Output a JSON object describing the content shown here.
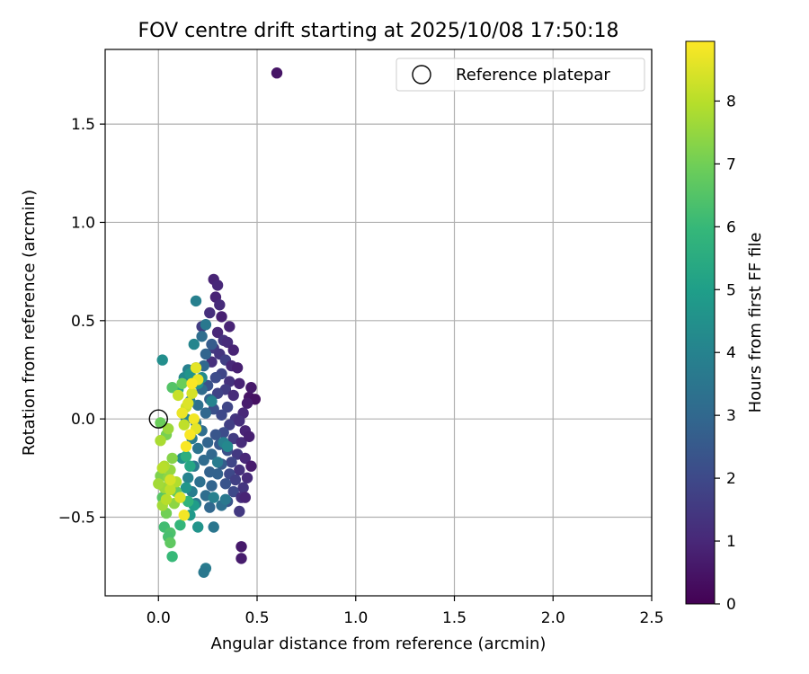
{
  "chart_data": {
    "type": "scatter",
    "title": "FOV centre drift starting at 2025/10/08 17:50:18",
    "xlabel": "Angular distance from reference (arcmin)",
    "ylabel": "Rotation from reference (arcmin)",
    "xlim": [
      -0.27,
      2.5
    ],
    "ylim": [
      -0.9,
      1.88
    ],
    "xticks": [
      0.0,
      0.5,
      1.0,
      1.5,
      2.0,
      2.5
    ],
    "xtick_labels": [
      "0.0",
      "0.5",
      "1.0",
      "1.5",
      "2.0",
      "2.5"
    ],
    "yticks": [
      -0.5,
      0.0,
      0.5,
      1.0,
      1.5
    ],
    "ytick_labels": [
      "−0.5",
      "0.0",
      "0.5",
      "1.0",
      "1.5"
    ],
    "grid": true,
    "legend": {
      "placement": "top-right",
      "entries": [
        "Reference platepar"
      ]
    },
    "reference_point": {
      "x": 0.0,
      "y": 0.0,
      "label": "Reference platepar"
    },
    "colorbar": {
      "label": "Hours from first FF file",
      "colormap": "viridis",
      "range": [
        0,
        8.95
      ],
      "ticks": [
        0,
        1,
        2,
        3,
        4,
        5,
        6,
        7,
        8
      ],
      "tick_labels": [
        "0",
        "1",
        "2",
        "3",
        "4",
        "5",
        "6",
        "7",
        "8"
      ]
    },
    "colormap_stops": [
      "#440154",
      "#482878",
      "#3e4989",
      "#31688e",
      "#26828e",
      "#1f9e89",
      "#35b779",
      "#6ece58",
      "#b5de2b",
      "#fde725"
    ],
    "series": [
      {
        "points": [
          [
            0.6,
            1.76,
            0.5
          ],
          [
            0.28,
            0.71,
            0.9
          ],
          [
            0.3,
            0.68,
            1.0
          ],
          [
            0.29,
            0.62,
            0.9
          ],
          [
            0.31,
            0.58,
            1.1
          ],
          [
            0.26,
            0.54,
            1.2
          ],
          [
            0.32,
            0.52,
            0.8
          ],
          [
            0.22,
            0.47,
            1.6
          ],
          [
            0.36,
            0.47,
            0.9
          ],
          [
            0.3,
            0.44,
            1.0
          ],
          [
            0.33,
            0.4,
            1.3
          ],
          [
            0.35,
            0.39,
            1.1
          ],
          [
            0.28,
            0.36,
            1.5
          ],
          [
            0.38,
            0.35,
            0.9
          ],
          [
            0.31,
            0.33,
            1.4
          ],
          [
            0.34,
            0.3,
            1.7
          ],
          [
            0.27,
            0.29,
            1.2
          ],
          [
            0.37,
            0.27,
            1.0
          ],
          [
            0.4,
            0.26,
            0.8
          ],
          [
            0.32,
            0.23,
            1.9
          ],
          [
            0.29,
            0.21,
            2.1
          ],
          [
            0.36,
            0.19,
            1.3
          ],
          [
            0.41,
            0.18,
            0.9
          ],
          [
            0.25,
            0.17,
            2.3
          ],
          [
            0.34,
            0.15,
            1.6
          ],
          [
            0.3,
            0.13,
            1.8
          ],
          [
            0.38,
            0.12,
            1.1
          ],
          [
            0.46,
            0.11,
            0.5
          ],
          [
            0.47,
            0.16,
            0.6
          ],
          [
            0.49,
            0.1,
            0.4
          ],
          [
            0.45,
            0.08,
            0.7
          ],
          [
            0.43,
            0.03,
            1.0
          ],
          [
            0.35,
            0.06,
            1.9
          ],
          [
            0.28,
            0.05,
            2.2
          ],
          [
            0.32,
            0.02,
            2.0
          ],
          [
            0.39,
            0.0,
            1.4
          ],
          [
            0.36,
            -0.03,
            1.7
          ],
          [
            0.41,
            -0.01,
            1.2
          ],
          [
            0.44,
            -0.06,
            0.9
          ],
          [
            0.33,
            -0.07,
            2.1
          ],
          [
            0.29,
            -0.08,
            2.4
          ],
          [
            0.38,
            -0.1,
            1.6
          ],
          [
            0.42,
            -0.12,
            1.1
          ],
          [
            0.46,
            -0.09,
            0.8
          ],
          [
            0.31,
            -0.13,
            2.5
          ],
          [
            0.35,
            -0.16,
            2.2
          ],
          [
            0.4,
            -0.18,
            1.5
          ],
          [
            0.27,
            -0.18,
            3.0
          ],
          [
            0.44,
            -0.2,
            1.0
          ],
          [
            0.37,
            -0.22,
            1.9
          ],
          [
            0.32,
            -0.23,
            2.6
          ],
          [
            0.47,
            -0.24,
            0.7
          ],
          [
            0.41,
            -0.26,
            1.3
          ],
          [
            0.36,
            -0.28,
            2.0
          ],
          [
            0.3,
            -0.28,
            2.8
          ],
          [
            0.45,
            -0.3,
            1.1
          ],
          [
            0.39,
            -0.31,
            1.7
          ],
          [
            0.34,
            -0.33,
            2.3
          ],
          [
            0.43,
            -0.35,
            1.4
          ],
          [
            0.38,
            -0.37,
            2.0
          ],
          [
            0.42,
            -0.4,
            1.2
          ],
          [
            0.35,
            -0.42,
            2.4
          ],
          [
            0.44,
            -0.4,
            0.9
          ],
          [
            0.41,
            -0.47,
            1.5
          ],
          [
            0.42,
            -0.65,
            0.6
          ],
          [
            0.42,
            -0.71,
            0.7
          ],
          [
            0.24,
            0.48,
            3.6
          ],
          [
            0.22,
            0.42,
            3.2
          ],
          [
            0.27,
            0.38,
            2.6
          ],
          [
            0.24,
            0.33,
            2.9
          ],
          [
            0.19,
            0.26,
            3.4
          ],
          [
            0.23,
            0.27,
            3.0
          ],
          [
            0.15,
            0.25,
            3.9
          ],
          [
            0.13,
            0.21,
            4.2
          ],
          [
            0.18,
            0.2,
            3.5
          ],
          [
            0.22,
            0.15,
            3.1
          ],
          [
            0.26,
            0.1,
            2.8
          ],
          [
            0.2,
            0.07,
            3.3
          ],
          [
            0.16,
            0.09,
            3.8
          ],
          [
            0.24,
            0.03,
            3.0
          ],
          [
            0.19,
            -0.02,
            3.5
          ],
          [
            0.14,
            0.0,
            4.1
          ],
          [
            0.22,
            -0.06,
            3.2
          ],
          [
            0.17,
            -0.1,
            3.7
          ],
          [
            0.25,
            -0.12,
            2.9
          ],
          [
            0.2,
            -0.15,
            3.4
          ],
          [
            0.12,
            -0.2,
            4.5
          ],
          [
            0.23,
            -0.21,
            3.1
          ],
          [
            0.18,
            -0.24,
            3.6
          ],
          [
            0.26,
            -0.27,
            2.8
          ],
          [
            0.15,
            -0.3,
            4.0
          ],
          [
            0.21,
            -0.32,
            3.3
          ],
          [
            0.27,
            -0.34,
            2.9
          ],
          [
            0.17,
            -0.37,
            3.8
          ],
          [
            0.24,
            -0.39,
            3.2
          ],
          [
            0.19,
            -0.43,
            3.6
          ],
          [
            0.26,
            -0.45,
            3.0
          ],
          [
            0.32,
            -0.44,
            3.3
          ],
          [
            0.34,
            -0.41,
            3.6
          ],
          [
            0.28,
            -0.4,
            3.9
          ],
          [
            0.3,
            -0.22,
            3.7
          ],
          [
            0.33,
            -0.12,
            3.9
          ],
          [
            0.35,
            -0.14,
            4.2
          ],
          [
            0.27,
            0.09,
            4.0
          ],
          [
            0.28,
            -0.55,
            3.5
          ],
          [
            0.18,
            0.38,
            4.1
          ],
          [
            0.19,
            0.6,
            3.9
          ],
          [
            0.24,
            -0.76,
            3.7
          ],
          [
            0.23,
            -0.78,
            3.6
          ],
          [
            0.02,
            0.3,
            4.4
          ],
          [
            0.2,
            -0.55,
            4.6
          ],
          [
            0.16,
            -0.49,
            4.8
          ],
          [
            0.14,
            -0.35,
            4.7
          ],
          [
            0.18,
            -0.44,
            4.9
          ],
          [
            0.16,
            0.23,
            4.6
          ],
          [
            0.2,
            0.18,
            4.5
          ],
          [
            0.22,
            0.21,
            4.3
          ],
          [
            0.1,
            0.15,
            5.4
          ],
          [
            0.14,
            -0.19,
            5.6
          ],
          [
            0.16,
            -0.24,
            5.3
          ],
          [
            0.15,
            -0.42,
            5.8
          ],
          [
            0.11,
            -0.54,
            5.9
          ],
          [
            0.03,
            -0.55,
            6.2
          ],
          [
            0.06,
            -0.58,
            6.4
          ],
          [
            0.07,
            -0.7,
            6.0
          ],
          [
            0.05,
            -0.6,
            6.3
          ],
          [
            0.07,
            0.16,
            6.5
          ],
          [
            0.12,
            0.18,
            6.9
          ],
          [
            0.09,
            -0.37,
            6.8
          ],
          [
            0.02,
            -0.4,
            6.6
          ],
          [
            0.06,
            -0.63,
            6.7
          ],
          [
            0.04,
            -0.48,
            7.0
          ],
          [
            0.01,
            -0.29,
            7.2
          ],
          [
            0.01,
            -0.02,
            6.9
          ],
          [
            0.04,
            -0.08,
            7.1
          ],
          [
            0.07,
            -0.2,
            7.3
          ],
          [
            0.05,
            -0.3,
            7.4
          ],
          [
            0.03,
            -0.35,
            7.6
          ],
          [
            0.06,
            -0.26,
            7.5
          ],
          [
            0.02,
            -0.44,
            7.7
          ],
          [
            0.08,
            -0.43,
            7.4
          ],
          [
            0.01,
            -0.11,
            7.8
          ],
          [
            0.05,
            -0.05,
            7.6
          ],
          [
            0.09,
            -0.32,
            7.9
          ],
          [
            0.04,
            -0.41,
            8.0
          ],
          [
            0.03,
            -0.24,
            7.9
          ],
          [
            0.06,
            -0.36,
            8.1
          ],
          [
            0.0,
            -0.33,
            7.7
          ],
          [
            0.02,
            -0.25,
            8.0
          ],
          [
            0.1,
            0.12,
            8.2
          ],
          [
            0.14,
            0.06,
            8.3
          ],
          [
            0.13,
            -0.03,
            8.1
          ],
          [
            0.17,
            0.13,
            8.4
          ],
          [
            0.15,
            0.08,
            8.5
          ],
          [
            0.19,
            0.26,
            8.6
          ],
          [
            0.2,
            0.2,
            8.7
          ],
          [
            0.18,
            0.0,
            8.8
          ],
          [
            0.19,
            -0.05,
            8.6
          ],
          [
            0.16,
            -0.08,
            8.9
          ],
          [
            0.14,
            -0.14,
            8.9
          ],
          [
            0.13,
            -0.49,
            8.8
          ],
          [
            0.11,
            -0.4,
            8.5
          ],
          [
            0.06,
            -0.31,
            8.4
          ],
          [
            0.12,
            0.03,
            8.7
          ],
          [
            0.17,
            0.18,
            8.9
          ]
        ]
      }
    ]
  }
}
